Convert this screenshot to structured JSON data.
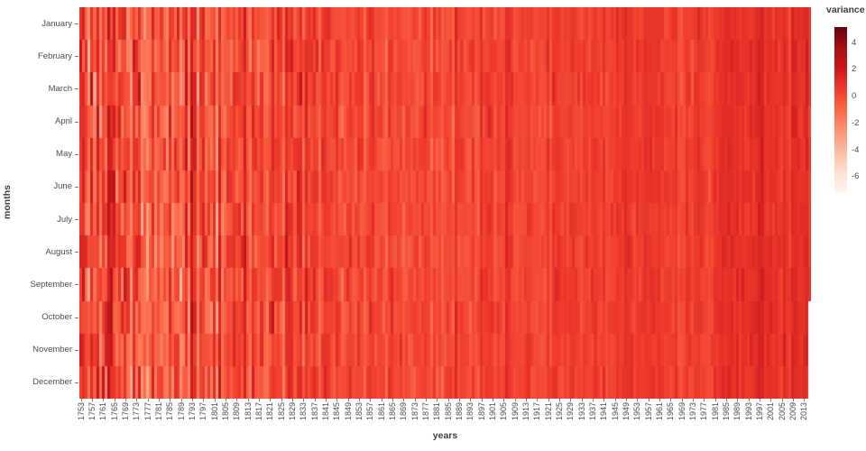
{
  "chart_data": {
    "type": "heatmap",
    "title": "",
    "xlabel": "years",
    "ylabel": "months",
    "rows_label": "months",
    "months": [
      "January",
      "February",
      "March",
      "April",
      "May",
      "June",
      "July",
      "August",
      "September",
      "October",
      "November",
      "December"
    ],
    "year_start": 1753,
    "year_end": 2015,
    "x_tick_labels": [
      "1753",
      "1757",
      "1761",
      "1765",
      "1769",
      "1773",
      "1777",
      "1781",
      "1785",
      "1789",
      "1793",
      "1797",
      "1801",
      "1805",
      "1809",
      "1813",
      "1817",
      "1821",
      "1825",
      "1829",
      "1833",
      "1837",
      "1841",
      "1845",
      "1849",
      "1853",
      "1857",
      "1861",
      "1865",
      "1869",
      "1873",
      "1877",
      "1881",
      "1885",
      "1889",
      "1893",
      "1897",
      "1901",
      "1905",
      "1909",
      "1913",
      "1917",
      "1921",
      "1925",
      "1929",
      "1933",
      "1937",
      "1941",
      "1945",
      "1949",
      "1953",
      "1957",
      "1961",
      "1965",
      "1969",
      "1973",
      "1977",
      "1981",
      "1985",
      "1989",
      "1993",
      "1997",
      "2001",
      "2005",
      "2009",
      "2013"
    ],
    "grid": false,
    "colorbar": {
      "title": "variance",
      "tick_values": [
        4,
        2,
        0,
        -2,
        -4,
        -6
      ],
      "vmin": -7.2,
      "vmax": 5.2,
      "palette_name": "Reds",
      "gradient_stops": [
        {
          "t": 0.0,
          "c": "#fff5f0"
        },
        {
          "t": 0.125,
          "c": "#fee0d2"
        },
        {
          "t": 0.25,
          "c": "#fcbba1"
        },
        {
          "t": 0.375,
          "c": "#fc9272"
        },
        {
          "t": 0.5,
          "c": "#fb6a4a"
        },
        {
          "t": 0.625,
          "c": "#ef3b2c"
        },
        {
          "t": 0.75,
          "c": "#cb181d"
        },
        {
          "t": 0.875,
          "c": "#a50f15"
        },
        {
          "t": 1.0,
          "c": "#67000d"
        }
      ]
    },
    "value_pattern_eras": [
      {
        "until": 1778,
        "mean": 0.0,
        "year_sd": 2.4,
        "cell_sd": 1.6
      },
      {
        "until": 1800,
        "mean": 0.1,
        "year_sd": 2.0,
        "cell_sd": 1.3
      },
      {
        "until": 1835,
        "mean": 0.0,
        "year_sd": 1.5,
        "cell_sd": 1.0
      },
      {
        "until": 1865,
        "mean": 0.2,
        "year_sd": 1.0,
        "cell_sd": 0.7
      },
      {
        "until": 1900,
        "mean": 0.25,
        "year_sd": 0.7,
        "cell_sd": 0.55
      },
      {
        "until": 1945,
        "mean": 0.35,
        "year_sd": 0.55,
        "cell_sd": 0.45
      },
      {
        "until": 1980,
        "mean": 0.5,
        "year_sd": 0.45,
        "cell_sd": 0.4
      },
      {
        "until": 2015,
        "mean": 0.95,
        "year_sd": 0.45,
        "cell_sd": 0.4
      }
    ],
    "value_clamp": [
      -7.0,
      5.0
    ],
    "missing_cells": [
      {
        "year": 2015,
        "months": [
          "October",
          "November",
          "December"
        ]
      }
    ],
    "seed": 42
  }
}
